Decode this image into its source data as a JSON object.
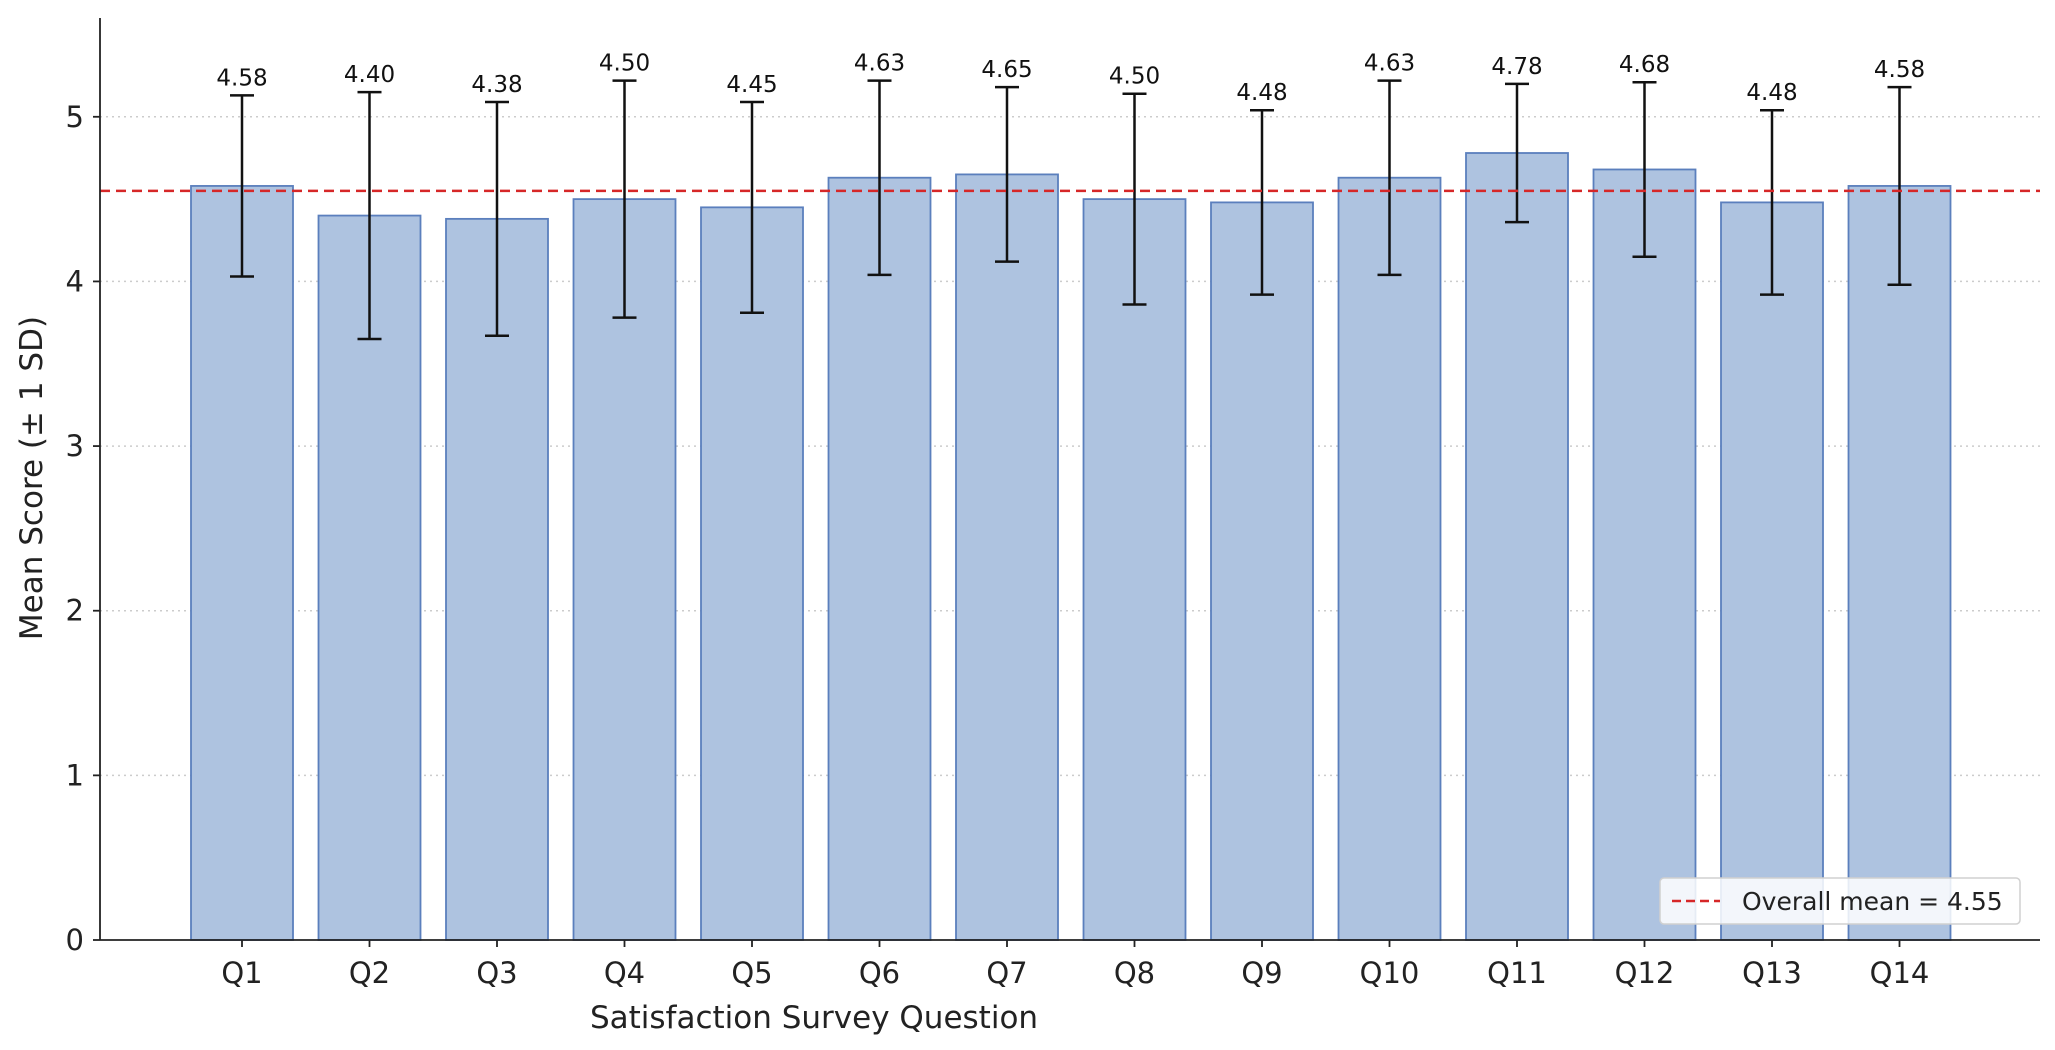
{
  "chart_data": {
    "type": "bar",
    "categories": [
      "Q1",
      "Q2",
      "Q3",
      "Q4",
      "Q5",
      "Q6",
      "Q7",
      "Q8",
      "Q9",
      "Q10",
      "Q11",
      "Q12",
      "Q13",
      "Q14"
    ],
    "values": [
      4.58,
      4.4,
      4.38,
      4.5,
      4.45,
      4.63,
      4.65,
      4.5,
      4.48,
      4.63,
      4.78,
      4.68,
      4.48,
      4.58
    ],
    "value_labels": [
      "4.58",
      "4.40",
      "4.38",
      "4.50",
      "4.45",
      "4.63",
      "4.65",
      "4.50",
      "4.48",
      "4.63",
      "4.78",
      "4.68",
      "4.48",
      "4.58"
    ],
    "error_sd": [
      0.55,
      0.75,
      0.71,
      0.72,
      0.64,
      0.59,
      0.53,
      0.64,
      0.56,
      0.59,
      0.42,
      0.53,
      0.56,
      0.6
    ],
    "title": "",
    "xlabel": "Satisfaction Survey Question",
    "ylabel": "Mean Score (± 1 SD)",
    "ylim": [
      0,
      5.6
    ],
    "yticks": [
      0,
      1,
      2,
      3,
      4,
      5
    ],
    "ytick_labels": [
      "0",
      "1",
      "2",
      "3",
      "4",
      "5"
    ],
    "grid": "y-dotted",
    "reference_line": {
      "value": 4.55,
      "label": "Overall mean = 4.55"
    },
    "legend": {
      "placement": "bottom-right"
    },
    "colors": {
      "bar_fill": "#aec3e0",
      "bar_edge": "#5b7fbd",
      "error_bar": "#111111",
      "mean_line": "#d62728",
      "grid": "#cccccc",
      "axis": "#222222"
    }
  }
}
